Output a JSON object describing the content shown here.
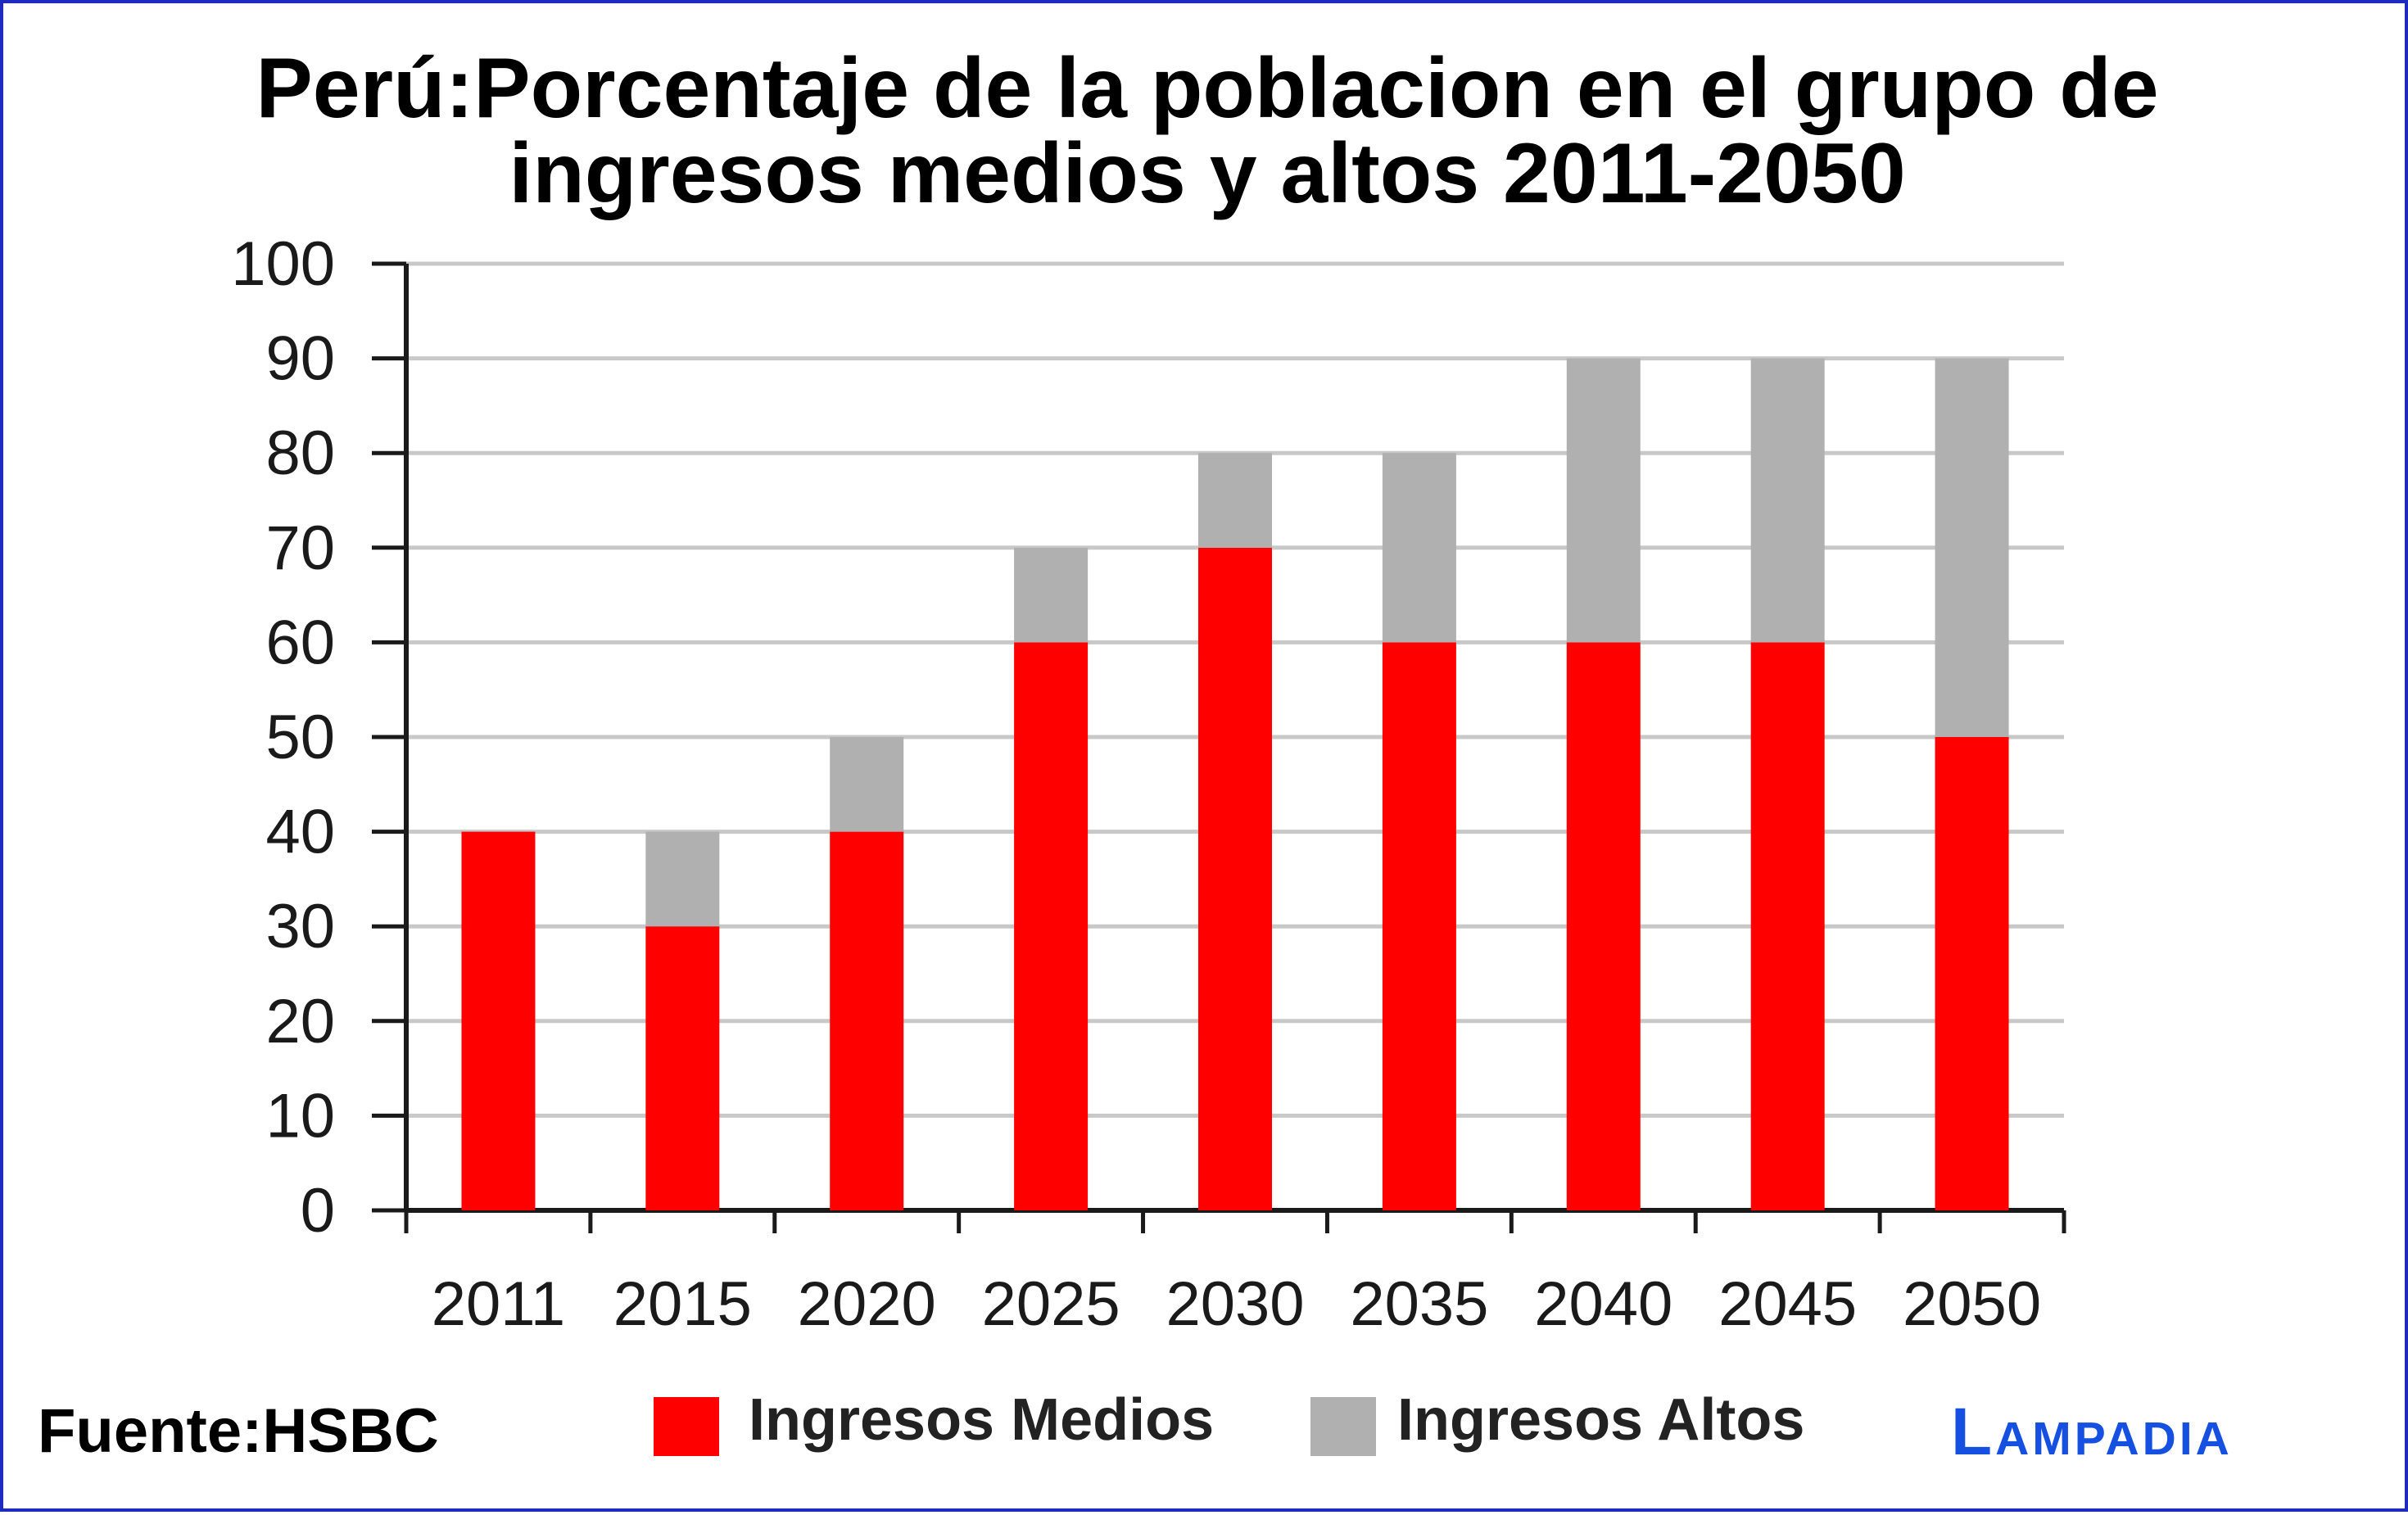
{
  "title_line1": "Perú:Porcentaje de la poblacion en el grupo de",
  "title_line2": "ingresos medios y altos 2011-2050",
  "source": "Fuente:HSBC",
  "logo": "Lampadia",
  "colors": {
    "medios": "#ff0000",
    "altos": "#b0b0b0",
    "border": "#1f2bbf",
    "grid": "#c8c8c8",
    "logo": "#1550e0"
  },
  "chart_data": {
    "type": "bar",
    "stacked": true,
    "title": "Perú:Porcentaje de la poblacion en el grupo de ingresos medios y altos 2011-2050",
    "categories": [
      "2011",
      "2015",
      "2020",
      "2025",
      "2030",
      "2035",
      "2040",
      "2045",
      "2050"
    ],
    "series": [
      {
        "name": "Ingresos Medios",
        "values": [
          40,
          30,
          40,
          60,
          70,
          60,
          60,
          60,
          50
        ]
      },
      {
        "name": "Ingresos Altos",
        "values": [
          0,
          10,
          10,
          10,
          10,
          20,
          30,
          30,
          40
        ]
      }
    ],
    "ylim": [
      0,
      100
    ],
    "yticks": [
      0,
      10,
      20,
      30,
      40,
      50,
      60,
      70,
      80,
      90,
      100
    ],
    "grid": true,
    "legend": "bottom-center",
    "xlabel": "",
    "ylabel": ""
  }
}
